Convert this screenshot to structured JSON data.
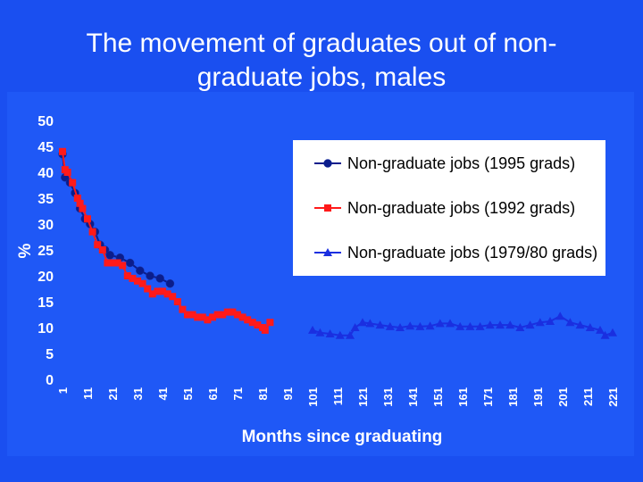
{
  "slide": {
    "title_line1": "The movement of graduates out of non-",
    "title_line2": "graduate jobs, males"
  },
  "chart_data": {
    "type": "line",
    "title": "The movement of graduates out of non-graduate jobs, males",
    "xlabel": "Months since graduating",
    "ylabel": "%",
    "xlim": [
      1,
      221
    ],
    "ylim": [
      0,
      50
    ],
    "yticks": [
      0,
      5,
      10,
      15,
      20,
      25,
      30,
      35,
      40,
      45,
      50
    ],
    "xticks": [
      1,
      11,
      21,
      31,
      41,
      51,
      61,
      71,
      81,
      91,
      101,
      111,
      121,
      131,
      141,
      151,
      161,
      171,
      181,
      191,
      201,
      211,
      221
    ],
    "grid": false,
    "legend_position": "top-right",
    "series": [
      {
        "name": "Non-graduate jobs (1995 grads)",
        "color": "#0b1d8c",
        "marker": "circle",
        "points": [
          [
            1,
            43.5
          ],
          [
            2,
            39
          ],
          [
            4,
            38
          ],
          [
            6,
            36
          ],
          [
            8,
            33
          ],
          [
            10,
            31
          ],
          [
            12,
            30
          ],
          [
            14,
            28.5
          ],
          [
            16,
            26
          ],
          [
            18,
            25
          ],
          [
            20,
            24
          ],
          [
            24,
            23.5
          ],
          [
            28,
            22.5
          ],
          [
            32,
            21
          ],
          [
            36,
            20
          ],
          [
            40,
            19.5
          ],
          [
            44,
            18.5
          ]
        ]
      },
      {
        "name": "Non-graduate jobs (1992 grads)",
        "color": "#ff1a1a",
        "marker": "square",
        "points": [
          [
            1,
            44
          ],
          [
            2,
            40.5
          ],
          [
            3,
            40
          ],
          [
            5,
            38
          ],
          [
            7,
            35
          ],
          [
            8,
            34
          ],
          [
            9,
            33
          ],
          [
            11,
            31
          ],
          [
            13,
            28.5
          ],
          [
            15,
            26
          ],
          [
            17,
            25
          ],
          [
            19,
            22.5
          ],
          [
            21,
            22.5
          ],
          [
            23,
            22.5
          ],
          [
            25,
            22
          ],
          [
            27,
            20
          ],
          [
            29,
            19.5
          ],
          [
            31,
            19
          ],
          [
            33,
            18.5
          ],
          [
            35,
            17.5
          ],
          [
            37,
            16.5
          ],
          [
            39,
            17
          ],
          [
            41,
            17
          ],
          [
            43,
            16.5
          ],
          [
            45,
            16
          ],
          [
            47,
            15
          ],
          [
            49,
            13.5
          ],
          [
            51,
            12.5
          ],
          [
            53,
            12.5
          ],
          [
            55,
            12
          ],
          [
            57,
            12
          ],
          [
            59,
            11.5
          ],
          [
            61,
            12
          ],
          [
            63,
            12.5
          ],
          [
            65,
            12.5
          ],
          [
            67,
            13
          ],
          [
            69,
            13
          ],
          [
            71,
            12.5
          ],
          [
            73,
            12
          ],
          [
            75,
            11.5
          ],
          [
            77,
            11
          ],
          [
            79,
            10.5
          ],
          [
            81,
            10
          ],
          [
            82,
            9.5
          ],
          [
            84,
            11
          ]
        ]
      },
      {
        "name": "Non-graduate jobs (1979/80 grads)",
        "color": "#1a2fe0",
        "marker": "triangle",
        "points": [
          [
            101,
            9.5
          ],
          [
            104,
            9
          ],
          [
            108,
            8.8
          ],
          [
            112,
            8.5
          ],
          [
            116,
            8.5
          ],
          [
            118,
            10
          ],
          [
            121,
            11
          ],
          [
            124,
            10.8
          ],
          [
            128,
            10.5
          ],
          [
            132,
            10.2
          ],
          [
            136,
            10
          ],
          [
            140,
            10.3
          ],
          [
            144,
            10.2
          ],
          [
            148,
            10.3
          ],
          [
            152,
            10.8
          ],
          [
            156,
            10.8
          ],
          [
            160,
            10.2
          ],
          [
            164,
            10.2
          ],
          [
            168,
            10.2
          ],
          [
            172,
            10.5
          ],
          [
            176,
            10.5
          ],
          [
            180,
            10.5
          ],
          [
            184,
            10
          ],
          [
            188,
            10.5
          ],
          [
            192,
            11
          ],
          [
            196,
            11.2
          ],
          [
            200,
            12.2
          ],
          [
            204,
            11
          ],
          [
            208,
            10.5
          ],
          [
            212,
            10
          ],
          [
            216,
            9.5
          ],
          [
            218,
            8.5
          ],
          [
            221,
            9
          ]
        ]
      }
    ]
  }
}
